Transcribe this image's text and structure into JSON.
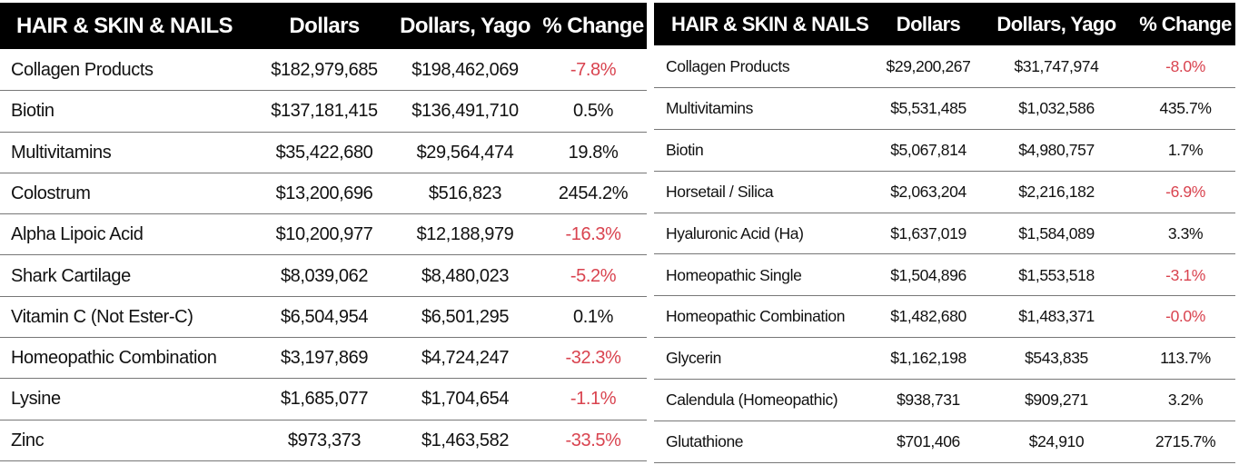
{
  "tables": [
    {
      "header": [
        "HAIR & SKIN & NAILS",
        "Dollars",
        "Dollars, Yago",
        "% Change"
      ],
      "rows": [
        [
          "Collagen Products",
          "$182,979,685",
          "$198,462,069",
          "-7.8%"
        ],
        [
          "Biotin",
          "$137,181,415",
          "$136,491,710",
          "0.5%"
        ],
        [
          "Multivitamins",
          "$35,422,680",
          "$29,564,474",
          "19.8%"
        ],
        [
          "Colostrum",
          "$13,200,696",
          "$516,823",
          "2454.2%"
        ],
        [
          "Alpha Lipoic Acid",
          "$10,200,977",
          "$12,188,979",
          "-16.3%"
        ],
        [
          "Shark Cartilage",
          "$8,039,062",
          "$8,480,023",
          "-5.2%"
        ],
        [
          "Vitamin C (Not Ester-C)",
          "$6,504,954",
          "$6,501,295",
          "0.1%"
        ],
        [
          "Homeopathic Combination",
          "$3,197,869",
          "$4,724,247",
          "-32.3%"
        ],
        [
          "Lysine",
          "$1,685,077",
          "$1,704,654",
          "-1.1%"
        ],
        [
          "Zinc",
          "$973,373",
          "$1,463,582",
          "-33.5%"
        ]
      ]
    },
    {
      "header": [
        "HAIR & SKIN & NAILS",
        "Dollars",
        "Dollars, Yago",
        "% Change"
      ],
      "rows": [
        [
          "Collagen Products",
          "$29,200,267",
          "$31,747,974",
          "-8.0%"
        ],
        [
          "Multivitamins",
          "$5,531,485",
          "$1,032,586",
          "435.7%"
        ],
        [
          "Biotin",
          "$5,067,814",
          "$4,980,757",
          "1.7%"
        ],
        [
          "Horsetail / Silica",
          "$2,063,204",
          "$2,216,182",
          "-6.9%"
        ],
        [
          "Hyaluronic Acid (Ha)",
          "$1,637,019",
          "$1,584,089",
          "3.3%"
        ],
        [
          "Homeopathic Single",
          "$1,504,896",
          "$1,553,518",
          "-3.1%"
        ],
        [
          "Homeopathic Combination",
          "$1,482,680",
          "$1,483,371",
          "-0.0%"
        ],
        [
          "Glycerin",
          "$1,162,198",
          "$543,835",
          "113.7%"
        ],
        [
          "Calendula (Homeopathic)",
          "$938,731",
          "$909,271",
          "3.2%"
        ],
        [
          "Glutathione",
          "$701,406",
          "$24,910",
          "2715.7%"
        ]
      ]
    }
  ]
}
